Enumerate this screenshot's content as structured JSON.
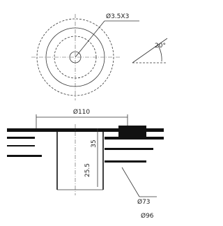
{
  "dimensions": {
    "hole": "Ø3.5X3",
    "angle": "20°",
    "outer_diameter": "Ø110",
    "depth_inner": "25.5",
    "depth_outer": "35",
    "inner_diameter": "Ø73",
    "bolt_circle": "Ø96"
  }
}
